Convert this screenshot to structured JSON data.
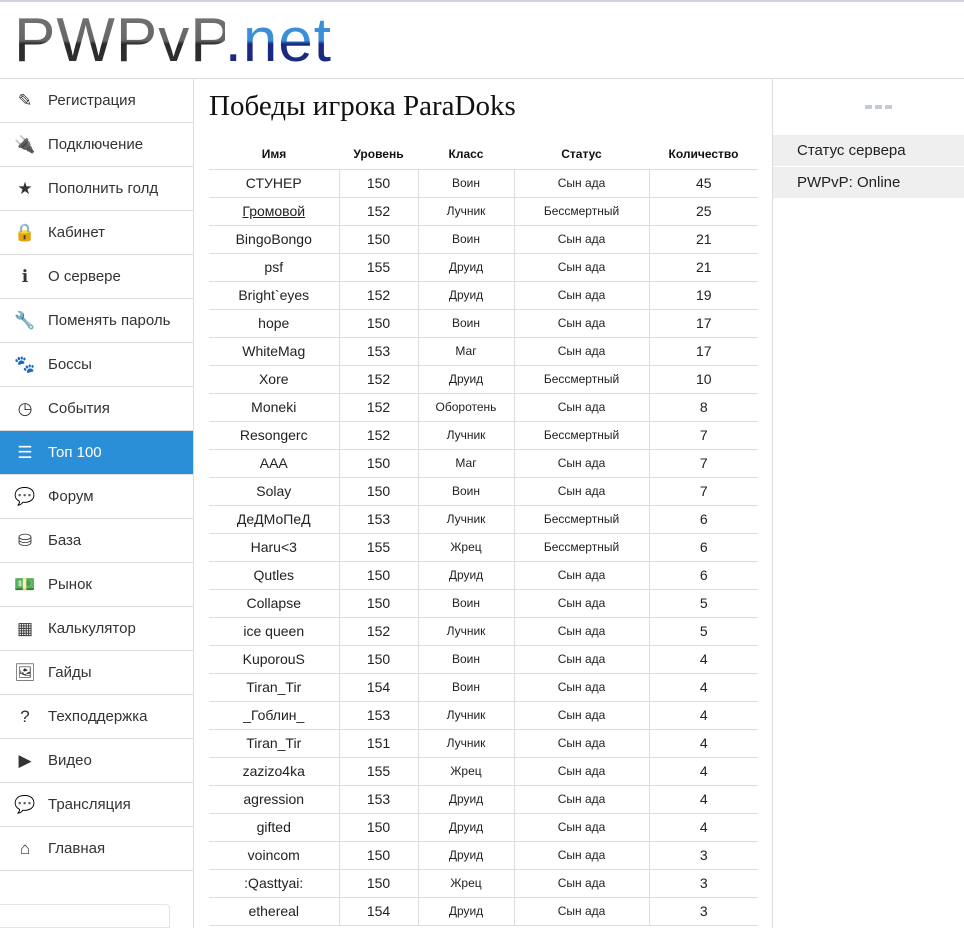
{
  "logo": {
    "part1": "PWPvP",
    "part2": ".net"
  },
  "sidebar": {
    "items": [
      {
        "label": "Регистрация",
        "icon": "edit-icon",
        "glyph": "✎"
      },
      {
        "label": "Подключение",
        "icon": "plug-icon",
        "glyph": "🔌"
      },
      {
        "label": "Пополнить голд",
        "icon": "star-icon",
        "glyph": "★"
      },
      {
        "label": "Кабинет",
        "icon": "lock-icon",
        "glyph": "🔒"
      },
      {
        "label": "О сервере",
        "icon": "info-icon",
        "glyph": "ℹ"
      },
      {
        "label": "Поменять пароль",
        "icon": "wrench-icon",
        "glyph": "🔧"
      },
      {
        "label": "Боссы",
        "icon": "paw-icon",
        "glyph": "🐾"
      },
      {
        "label": "События",
        "icon": "clock-icon",
        "glyph": "◷"
      },
      {
        "label": "Топ 100",
        "icon": "list-icon",
        "glyph": "☰",
        "active": true
      },
      {
        "label": "Форум",
        "icon": "comments-icon",
        "glyph": "💬"
      },
      {
        "label": "База",
        "icon": "database-icon",
        "glyph": "⛁"
      },
      {
        "label": "Рынок",
        "icon": "money-icon",
        "glyph": "💵"
      },
      {
        "label": "Калькулятор",
        "icon": "calculator-icon",
        "glyph": "▦"
      },
      {
        "label": "Гайды",
        "icon": "image-icon",
        "glyph": "🖼"
      },
      {
        "label": "Техподдержка",
        "icon": "question-icon",
        "glyph": "?"
      },
      {
        "label": "Видео",
        "icon": "youtube-icon",
        "glyph": "▶"
      },
      {
        "label": "Трансляция",
        "icon": "twitch-icon",
        "glyph": "💬"
      },
      {
        "label": "Главная",
        "icon": "home-icon",
        "glyph": "⌂"
      }
    ]
  },
  "main": {
    "title": "Победы игрока ParaDoks",
    "columns": [
      "Имя",
      "Уровень",
      "Класс",
      "Статус",
      "Количество"
    ],
    "rows": [
      [
        "СТУНЕР",
        "150",
        "Воин",
        "Сын ада",
        "45"
      ],
      [
        "Громовой",
        "152",
        "Лучник",
        "Бессмертный",
        "25"
      ],
      [
        "BingoBongo",
        "150",
        "Воин",
        "Сын ада",
        "21"
      ],
      [
        "psf",
        "155",
        "Друид",
        "Сын ада",
        "21"
      ],
      [
        "Bright`eyes",
        "152",
        "Друид",
        "Сын ада",
        "19"
      ],
      [
        "hope",
        "150",
        "Воин",
        "Сын ада",
        "17"
      ],
      [
        "WhiteMag",
        "153",
        "Маг",
        "Сын ада",
        "17"
      ],
      [
        "Xore",
        "152",
        "Друид",
        "Бессмертный",
        "10"
      ],
      [
        "Moneki",
        "152",
        "Оборотень",
        "Сын ада",
        "8"
      ],
      [
        "Resongerc",
        "152",
        "Лучник",
        "Бессмертный",
        "7"
      ],
      [
        "AAA",
        "150",
        "Маг",
        "Сын ада",
        "7"
      ],
      [
        "Solay",
        "150",
        "Воин",
        "Сын ада",
        "7"
      ],
      [
        "ДеДМоПеД",
        "153",
        "Лучник",
        "Бессмертный",
        "6"
      ],
      [
        "Haru<3",
        "155",
        "Жрец",
        "Бессмертный",
        "6"
      ],
      [
        "Qutles",
        "150",
        "Друид",
        "Сын ада",
        "6"
      ],
      [
        "Collapse",
        "150",
        "Воин",
        "Сын ада",
        "5"
      ],
      [
        "ice queen",
        "152",
        "Лучник",
        "Сын ада",
        "5"
      ],
      [
        "KuporouS",
        "150",
        "Воин",
        "Сын ада",
        "4"
      ],
      [
        "Tiran_Tir",
        "154",
        "Воин",
        "Сын ада",
        "4"
      ],
      [
        "_Гоблин_",
        "153",
        "Лучник",
        "Сын ада",
        "4"
      ],
      [
        "Tiran_Tir",
        "151",
        "Лучник",
        "Сын ада",
        "4"
      ],
      [
        "zazizo4ka",
        "155",
        "Жрец",
        "Сын ада",
        "4"
      ],
      [
        "agression",
        "153",
        "Друид",
        "Сын ада",
        "4"
      ],
      [
        "gifted",
        "150",
        "Друид",
        "Сын ада",
        "4"
      ],
      [
        "voincom",
        "150",
        "Друид",
        "Сын ада",
        "3"
      ],
      [
        ":Qasttyai:",
        "150",
        "Жрец",
        "Сын ада",
        "3"
      ],
      [
        "ethereal",
        "154",
        "Друид",
        "Сын ада",
        "3"
      ]
    ],
    "linked_row": 1
  },
  "right": {
    "status_title": "Статус сервера",
    "status_line": "PWPvP: Online"
  }
}
